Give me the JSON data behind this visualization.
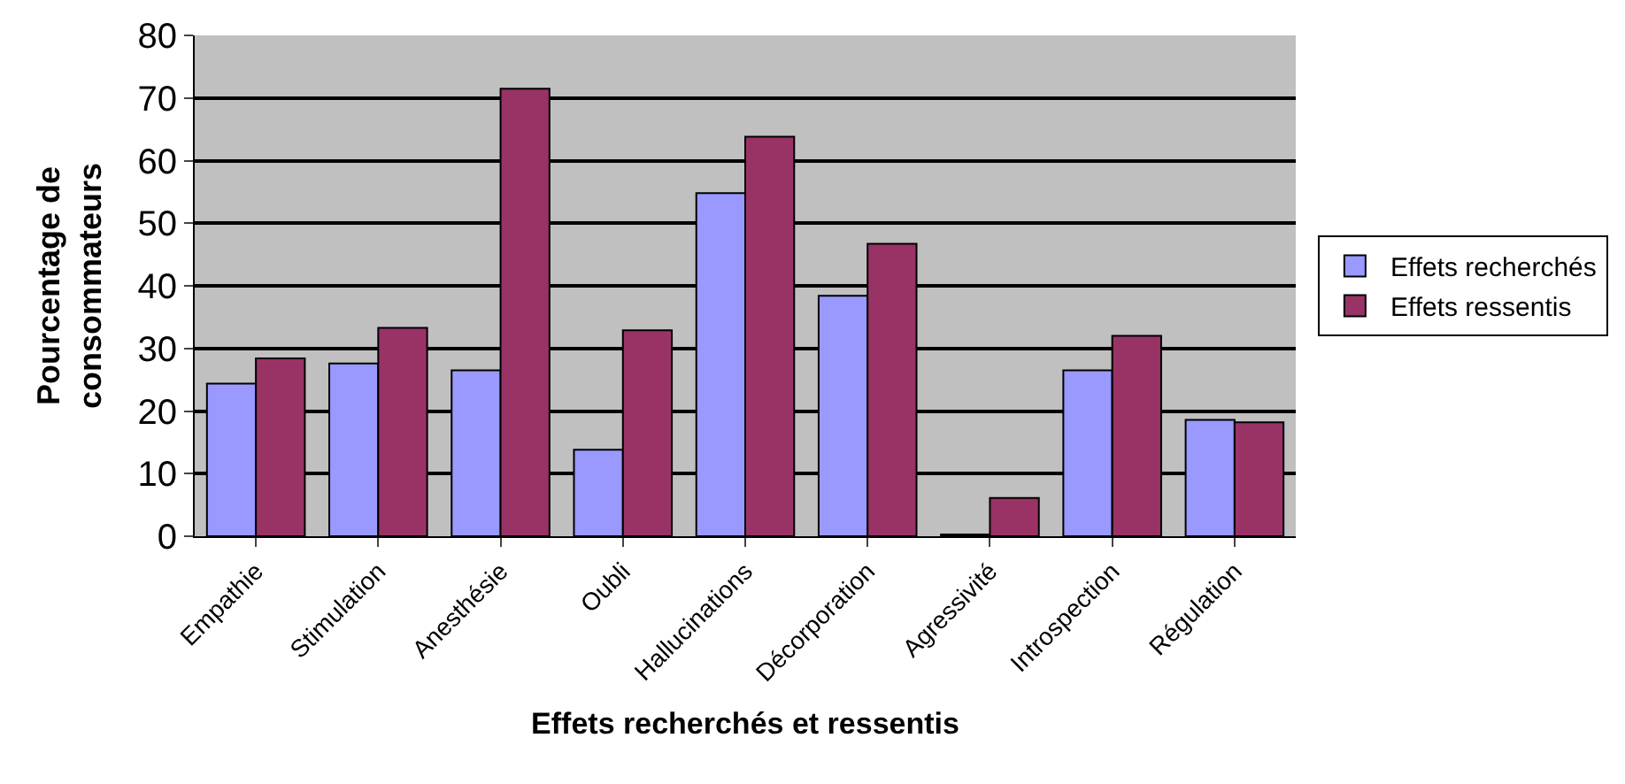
{
  "chart_data": {
    "type": "bar",
    "xlabel": "Effets recherchés et ressentis",
    "ylabel": "Pourcentage de\nconsommateurs",
    "categories": [
      "Empathie",
      "Stimulation",
      "Anesthésie",
      "Oubli",
      "Hallucinations",
      "Décorporation",
      "Agressivité",
      "Introspection",
      "Régulation"
    ],
    "series": [
      {
        "name": "Effets recherchés",
        "color": "#9999ff",
        "values": [
          24.4,
          27.6,
          26.5,
          13.8,
          54.8,
          38.4,
          0.3,
          26.5,
          18.6
        ]
      },
      {
        "name": "Effets ressentis",
        "color": "#993366",
        "values": [
          28.4,
          33.3,
          71.5,
          32.9,
          63.8,
          46.7,
          6.1,
          32,
          18.2
        ]
      }
    ],
    "ylim": [
      0,
      80
    ],
    "yticks": [
      0,
      10,
      20,
      30,
      40,
      50,
      60,
      70,
      80
    ],
    "grid": "y",
    "legend": "right"
  }
}
